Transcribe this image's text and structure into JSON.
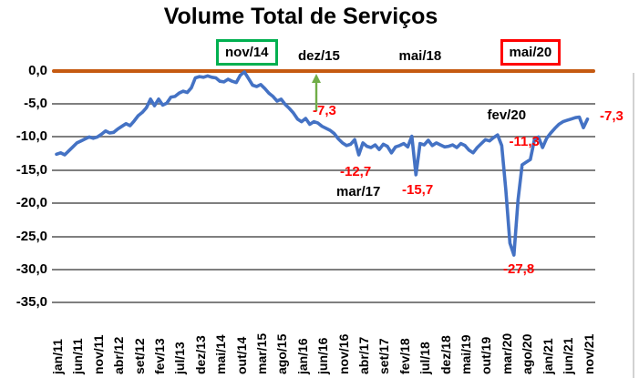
{
  "chart_data": {
    "type": "line",
    "title": "Volume Total de Serviços",
    "x_start": "jan/11",
    "x_end": "nov/21",
    "frequency": "monthly",
    "x_tick_labels": [
      "jan/11",
      "jun/11",
      "nov/11",
      "abr/12",
      "set/12",
      "fev/13",
      "jul/13",
      "dez/13",
      "mai/14",
      "out/14",
      "mar/15",
      "ago/15",
      "jan/16",
      "jun/16",
      "nov/16",
      "abr/17",
      "set/17",
      "fev/18",
      "jul/18",
      "dez/18",
      "mai/19",
      "out/19",
      "mar/20",
      "ago/20",
      "jan/21",
      "jun/21",
      "nov/21"
    ],
    "y_ticks": [
      0,
      -5,
      -10,
      -15,
      -20,
      -25,
      -30,
      -35
    ],
    "y_tick_labels": [
      "0,0",
      "-5,0",
      "-10,0",
      "-15,0",
      "-20,0",
      "-25,0",
      "-30,0",
      "-35,0"
    ],
    "ylim": [
      -35,
      0
    ],
    "grid": true,
    "zero_line_color": "#c55a11",
    "series": [
      {
        "name": "Volume Total de Serviços",
        "color": "#4472c4",
        "values": [
          -12.6,
          -12.4,
          -12.7,
          -12.1,
          -11.5,
          -10.9,
          -10.6,
          -10.3,
          -10.0,
          -10.2,
          -10.0,
          -9.6,
          -9.1,
          -9.4,
          -9.3,
          -8.8,
          -8.4,
          -8.0,
          -8.3,
          -7.6,
          -6.8,
          -6.3,
          -5.6,
          -4.3,
          -5.3,
          -4.3,
          -5.2,
          -4.9,
          -4.0,
          -3.9,
          -3.4,
          -3.1,
          -3.3,
          -2.6,
          -1.1,
          -0.9,
          -1.0,
          -0.8,
          -1.0,
          -1.1,
          -1.6,
          -1.7,
          -1.3,
          -1.6,
          -1.8,
          -0.7,
          -0.2,
          -1.2,
          -2.2,
          -2.4,
          -2.1,
          -2.7,
          -3.4,
          -3.9,
          -4.6,
          -4.3,
          -5.1,
          -5.7,
          -6.4,
          -7.3,
          -7.7,
          -7.2,
          -8.1,
          -7.7,
          -7.9,
          -8.4,
          -8.7,
          -9.0,
          -9.5,
          -10.3,
          -10.9,
          -11.3,
          -11.1,
          -10.4,
          -12.7,
          -10.9,
          -11.4,
          -11.6,
          -11.2,
          -11.9,
          -11.1,
          -11.4,
          -12.4,
          -11.5,
          -11.3,
          -11.0,
          -11.5,
          -9.9,
          -15.7,
          -11.0,
          -11.2,
          -10.5,
          -11.3,
          -10.9,
          -11.2,
          -11.5,
          -11.4,
          -11.2,
          -11.6,
          -11.0,
          -11.3,
          -12.0,
          -12.4,
          -11.6,
          -11.0,
          -10.4,
          -10.6,
          -10.1,
          -9.7,
          -11.3,
          -18.0,
          -26.0,
          -27.8,
          -19.5,
          -14.2,
          -13.8,
          -13.4,
          -10.4,
          -10.0,
          -11.6,
          -10.2,
          -9.4,
          -8.7,
          -8.1,
          -7.7,
          -7.5,
          -7.3,
          -7.1,
          -7.0,
          -8.6,
          -7.3
        ]
      }
    ],
    "annotations": [
      {
        "id": "nov14",
        "label": "nov/14",
        "style": "boxed",
        "box_color": "#00b050"
      },
      {
        "id": "dez15",
        "label": "dez/15",
        "style": "text_with_arrow",
        "arrow_color": "#70ad47"
      },
      {
        "id": "mai18",
        "label": "mai/18",
        "style": "text"
      },
      {
        "id": "mai20",
        "label": "mai/20",
        "style": "boxed",
        "box_color": "#ff0000"
      },
      {
        "id": "mar17",
        "label": "mar/17",
        "style": "text"
      },
      {
        "id": "fev20",
        "label": "fev/20",
        "style": "text"
      },
      {
        "id": "val_dez15",
        "label": "-7,3",
        "style": "value",
        "color": "#ff0000"
      },
      {
        "id": "val_mar17",
        "label": "-12,7",
        "style": "value",
        "color": "#ff0000"
      },
      {
        "id": "val_mai18",
        "label": "-15,7",
        "style": "value",
        "color": "#ff0000"
      },
      {
        "id": "val_fev20",
        "label": "-11,3",
        "style": "value",
        "color": "#ff0000"
      },
      {
        "id": "val_mai20",
        "label": "-27,8",
        "style": "value",
        "color": "#ff0000"
      },
      {
        "id": "val_nov21",
        "label": "-7,3",
        "style": "value",
        "color": "#ff0000"
      }
    ]
  }
}
